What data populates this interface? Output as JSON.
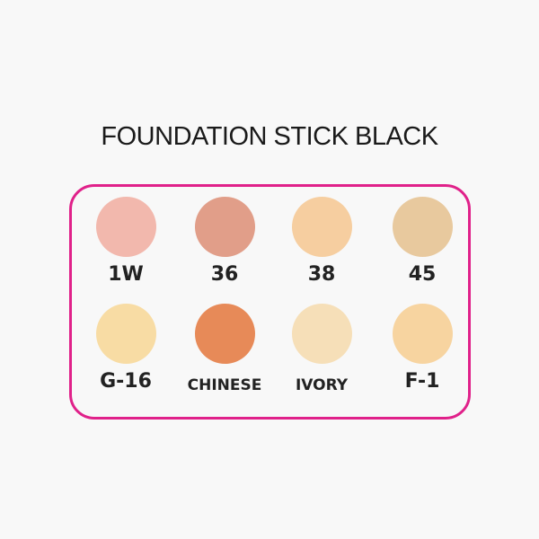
{
  "title": "FOUNDATION STICK BLACK",
  "border_color": "#e0218a",
  "swatches": [
    {
      "label": "1W",
      "color": "#f2b8ad"
    },
    {
      "label": "36",
      "color": "#e19e89"
    },
    {
      "label": "38",
      "color": "#f6cea0"
    },
    {
      "label": "45",
      "color": "#e8c99e"
    },
    {
      "label": "G-16",
      "color": "#f8dca4"
    },
    {
      "label": "CHINESE",
      "color": "#e78a58"
    },
    {
      "label": "IVORY",
      "color": "#f6dfb8"
    },
    {
      "label": "F-1",
      "color": "#f7d4a0"
    }
  ]
}
